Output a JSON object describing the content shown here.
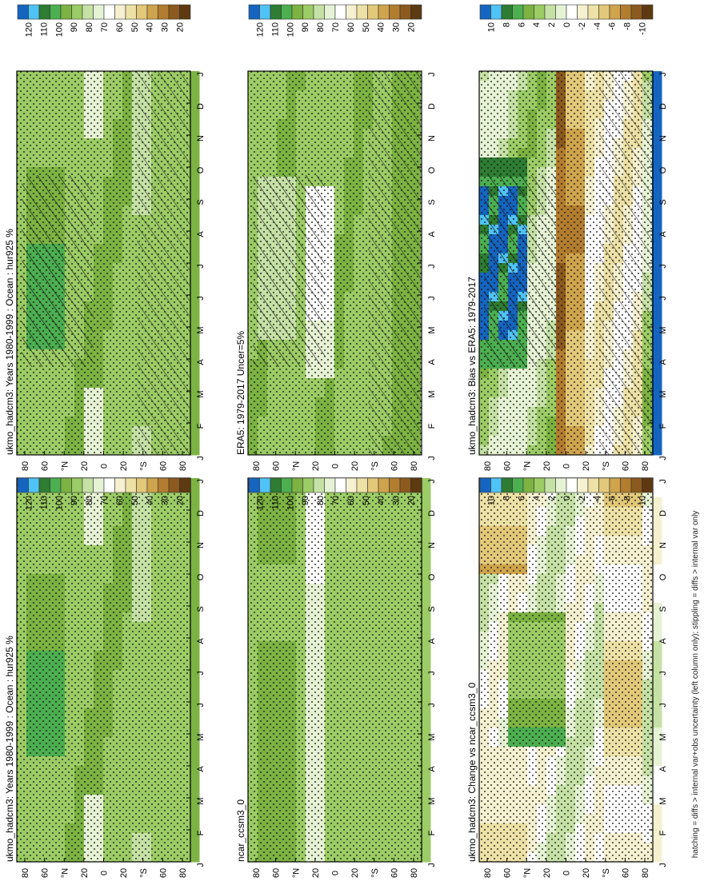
{
  "footer": "hatching = diffs > internal var+obs uncertainty (left column only); stippling = diffs > internal var only",
  "chart_data": [
    {
      "type": "heatmap",
      "title": "ukmo_hadcm3: Years 1980-1999 : Ocean : hur925 %",
      "palette": "abs",
      "field": "model",
      "xlabel": "",
      "ylabel": "",
      "x_ticks": [
        "J",
        "F",
        "M",
        "A",
        "M",
        "J",
        "J",
        "A",
        "S",
        "O",
        "N",
        "D",
        "J"
      ],
      "y_ticks": [
        "80",
        "60",
        "°N",
        "20",
        "0",
        "20",
        "°S",
        "60",
        "80"
      ],
      "colorbar": {
        "labels": [
          "120",
          "110",
          "100",
          "90",
          "80",
          "70",
          "60",
          "50",
          "40",
          "30",
          "20"
        ],
        "colors": [
          "#1565c0",
          "#4fc3f7",
          "#2e7d32",
          "#4caf50",
          "#7cb342",
          "#9ccc65",
          "#c5e1a5",
          "#e6f2d4",
          "#ffffff",
          "#f5f0d0",
          "#ede1a6",
          "#e2c879",
          "#cfa44c",
          "#b27d2e",
          "#8c5a1e",
          "#5d3a12"
        ]
      },
      "hatching": true,
      "stippling": true
    },
    {
      "type": "heatmap",
      "title": "ukmo_hadcm3: Years 1980-1999 : Ocean : hur925 %",
      "palette": "abs",
      "field": "model",
      "xlabel": "",
      "ylabel": "",
      "x_ticks": [
        "J",
        "F",
        "M",
        "A",
        "M",
        "J",
        "J",
        "A",
        "S",
        "O",
        "N",
        "D",
        "J"
      ],
      "y_ticks": [
        "80",
        "60",
        "°N",
        "20",
        "0",
        "20",
        "°S",
        "60",
        "80"
      ],
      "colorbar": {
        "labels": [
          "120",
          "110",
          "100",
          "90",
          "80",
          "70",
          "60",
          "50",
          "40",
          "30",
          "20"
        ],
        "colors": [
          "#1565c0",
          "#4fc3f7",
          "#2e7d32",
          "#4caf50",
          "#7cb342",
          "#9ccc65",
          "#c5e1a5",
          "#e6f2d4",
          "#ffffff",
          "#f5f0d0",
          "#ede1a6",
          "#e2c879",
          "#cfa44c",
          "#b27d2e",
          "#8c5a1e",
          "#5d3a12"
        ]
      },
      "hatching": false,
      "stippling": true
    },
    {
      "type": "heatmap",
      "title": "ERA5: 1979-2017 Uncer=5%",
      "palette": "abs",
      "field": "obs",
      "xlabel": "",
      "ylabel": "",
      "x_ticks": [
        "J",
        "F",
        "M",
        "A",
        "M",
        "J",
        "J",
        "A",
        "S",
        "O",
        "N",
        "D",
        "J"
      ],
      "y_ticks": [
        "80",
        "60",
        "°N",
        "20",
        "0",
        "20",
        "°S",
        "60",
        "80"
      ],
      "colorbar": {
        "labels": [
          "120",
          "110",
          "100",
          "90",
          "80",
          "70",
          "60",
          "50",
          "40",
          "30",
          "20"
        ],
        "colors": [
          "#1565c0",
          "#4fc3f7",
          "#2e7d32",
          "#4caf50",
          "#7cb342",
          "#9ccc65",
          "#c5e1a5",
          "#e6f2d4",
          "#ffffff",
          "#f5f0d0",
          "#ede1a6",
          "#e2c879",
          "#cfa44c",
          "#b27d2e",
          "#8c5a1e",
          "#5d3a12"
        ]
      },
      "hatching": true,
      "stippling": true
    },
    {
      "type": "heatmap",
      "title": "ncar_ccsm3_0",
      "palette": "abs",
      "field": "model2",
      "xlabel": "",
      "ylabel": "",
      "x_ticks": [
        "J",
        "F",
        "M",
        "A",
        "M",
        "J",
        "J",
        "A",
        "S",
        "O",
        "N",
        "D",
        "J"
      ],
      "y_ticks": [
        "80",
        "60",
        "°N",
        "20",
        "0",
        "20",
        "°S",
        "60",
        "80"
      ],
      "colorbar": {
        "labels": [
          "120",
          "110",
          "100",
          "90",
          "80",
          "70",
          "60",
          "50",
          "40",
          "30",
          "20"
        ],
        "colors": [
          "#1565c0",
          "#4fc3f7",
          "#2e7d32",
          "#4caf50",
          "#7cb342",
          "#9ccc65",
          "#c5e1a5",
          "#e6f2d4",
          "#ffffff",
          "#f5f0d0",
          "#ede1a6",
          "#e2c879",
          "#cfa44c",
          "#b27d2e",
          "#8c5a1e",
          "#5d3a12"
        ]
      },
      "hatching": false,
      "stippling": true
    },
    {
      "type": "heatmap",
      "title": "ukmo_hadcm3: Bias vs ERA5: 1979-2017",
      "palette": "diff",
      "field": "bias",
      "xlabel": "",
      "ylabel": "",
      "x_ticks": [
        "J",
        "F",
        "M",
        "A",
        "M",
        "J",
        "J",
        "A",
        "S",
        "O",
        "N",
        "D",
        "J"
      ],
      "y_ticks": [
        "80",
        "60",
        "°N",
        "20",
        "0",
        "20",
        "°S",
        "60",
        "80"
      ],
      "colorbar": {
        "labels": [
          "10",
          "8",
          "6",
          "4",
          "2",
          "0",
          "-2",
          "-4",
          "-6",
          "-8",
          "-10"
        ],
        "colors": [
          "#1565c0",
          "#4fc3f7",
          "#2e7d32",
          "#4caf50",
          "#7cb342",
          "#9ccc65",
          "#c5e1a5",
          "#e6f2d4",
          "#ffffff",
          "#f5f0d0",
          "#ede1a6",
          "#e2c879",
          "#cfa44c",
          "#b27d2e",
          "#8c5a1e",
          "#5d3a12"
        ]
      },
      "hatching": true,
      "stippling": true
    },
    {
      "type": "heatmap",
      "title": "ukmo_hadcm3: Change vs ncar_ccsm3_0",
      "palette": "diff",
      "field": "change",
      "xlabel": "",
      "ylabel": "",
      "x_ticks": [
        "J",
        "F",
        "M",
        "A",
        "M",
        "J",
        "J",
        "A",
        "S",
        "O",
        "N",
        "D",
        "J"
      ],
      "y_ticks": [
        "80",
        "60",
        "°N",
        "20",
        "0",
        "20",
        "°S",
        "60",
        "80"
      ],
      "colorbar": {
        "labels": [
          "10",
          "8",
          "6",
          "4",
          "2",
          "0",
          "-2",
          "-4",
          "-6",
          "-8",
          "-10"
        ],
        "colors": [
          "#1565c0",
          "#4fc3f7",
          "#2e7d32",
          "#4caf50",
          "#7cb342",
          "#9ccc65",
          "#c5e1a5",
          "#e6f2d4",
          "#ffffff",
          "#f5f0d0",
          "#ede1a6",
          "#e2c879",
          "#cfa44c",
          "#b27d2e",
          "#8c5a1e",
          "#5d3a12"
        ]
      },
      "hatching": false,
      "stippling": true
    }
  ]
}
